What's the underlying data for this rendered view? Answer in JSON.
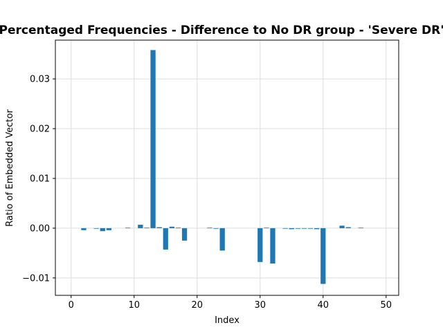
{
  "chart_data": {
    "type": "bar",
    "title": "Percentaged Frequencies - Difference to No DR group - 'Severe DR'",
    "xlabel": "Index",
    "ylabel": "Ratio of Embedded Vector",
    "xlim": [
      -2.5,
      52
    ],
    "ylim": [
      -0.0135,
      0.0378
    ],
    "xticks": [
      0,
      10,
      20,
      30,
      40,
      50
    ],
    "yticks": [
      -0.01,
      0.0,
      0.01,
      0.02,
      0.03
    ],
    "xtick_labels": [
      "0",
      "10",
      "20",
      "30",
      "40",
      "50"
    ],
    "ytick_labels": [
      "−0.01",
      "0.00",
      "0.01",
      "0.02",
      "0.03"
    ],
    "grid": true,
    "bar_color": "#1f77b4",
    "x": [
      2,
      4,
      5,
      6,
      9,
      11,
      12,
      13,
      14,
      15,
      16,
      17,
      18,
      22,
      23,
      24,
      30,
      31,
      32,
      34,
      35,
      36,
      37,
      38,
      39,
      40,
      43,
      44,
      46
    ],
    "values": [
      -0.0004,
      -0.0001,
      -0.0006,
      -0.0004,
      0.0001,
      0.0007,
      0.0001,
      0.0358,
      0.0002,
      -0.0043,
      0.0003,
      0.0001,
      -0.0025,
      0.0001,
      -0.0001,
      -0.0045,
      -0.0068,
      0.0001,
      -0.0071,
      -0.0001,
      -0.0002,
      -0.0001,
      -0.0001,
      -0.0001,
      -0.0002,
      -0.0112,
      0.0005,
      0.0002,
      0.0001
    ]
  }
}
